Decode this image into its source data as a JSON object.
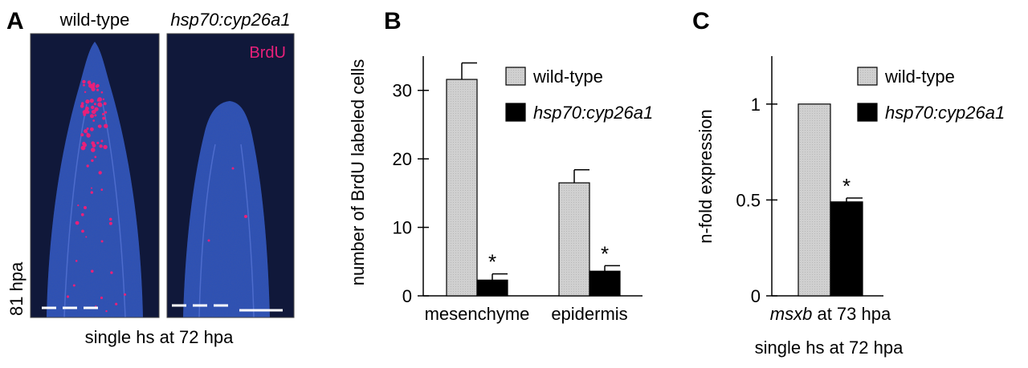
{
  "panelA": {
    "letter": "A",
    "left_title": "wild-type",
    "right_title": "hsp70:cyp26a1",
    "stain_label": "BrdU",
    "time_label": "81 hpa",
    "caption": "single hs at 72 hpa",
    "colors": {
      "tissue": "#2a4fb8",
      "background": "#10183a",
      "brdu": "#e8207a"
    }
  },
  "panelB": {
    "letter": "B",
    "chart_data": {
      "type": "bar",
      "categories": [
        "mesenchyme",
        "epidermis"
      ],
      "series": [
        {
          "name": "wild-type",
          "values": [
            31.6,
            16.5
          ],
          "errors": [
            2.4,
            1.9
          ],
          "color": "#c8c8c8",
          "significant": [
            false,
            false
          ]
        },
        {
          "name": "hsp70:cyp26a1",
          "values": [
            2.3,
            3.6
          ],
          "errors": [
            0.9,
            0.8
          ],
          "color": "#000000",
          "significant": [
            true,
            true
          ]
        }
      ],
      "ylabel": "number of BrdU labeled cells",
      "ylim": [
        0,
        35
      ],
      "yticks": [
        0,
        10,
        20,
        30
      ],
      "legend": "top-right",
      "significance_mark": "*"
    }
  },
  "panelC": {
    "letter": "C",
    "chart_data": {
      "type": "bar",
      "categories": [
        "at 73 hpa"
      ],
      "category_gene": "msxb",
      "series": [
        {
          "name": "wild-type",
          "values": [
            1.0
          ],
          "errors": [
            0
          ],
          "color": "#c8c8c8",
          "significant": [
            false
          ]
        },
        {
          "name": "hsp70:cyp26a1",
          "values": [
            0.49
          ],
          "errors": [
            0.02
          ],
          "color": "#000000",
          "significant": [
            true
          ]
        }
      ],
      "ylabel": "n-fold expression",
      "ylim": [
        0,
        1.25
      ],
      "yticks": [
        0,
        0.5,
        1
      ],
      "ytick_labels": [
        "0",
        "0.5",
        "1"
      ],
      "legend": "top-right",
      "significance_mark": "*",
      "caption": "single hs at 72 hpa"
    }
  }
}
